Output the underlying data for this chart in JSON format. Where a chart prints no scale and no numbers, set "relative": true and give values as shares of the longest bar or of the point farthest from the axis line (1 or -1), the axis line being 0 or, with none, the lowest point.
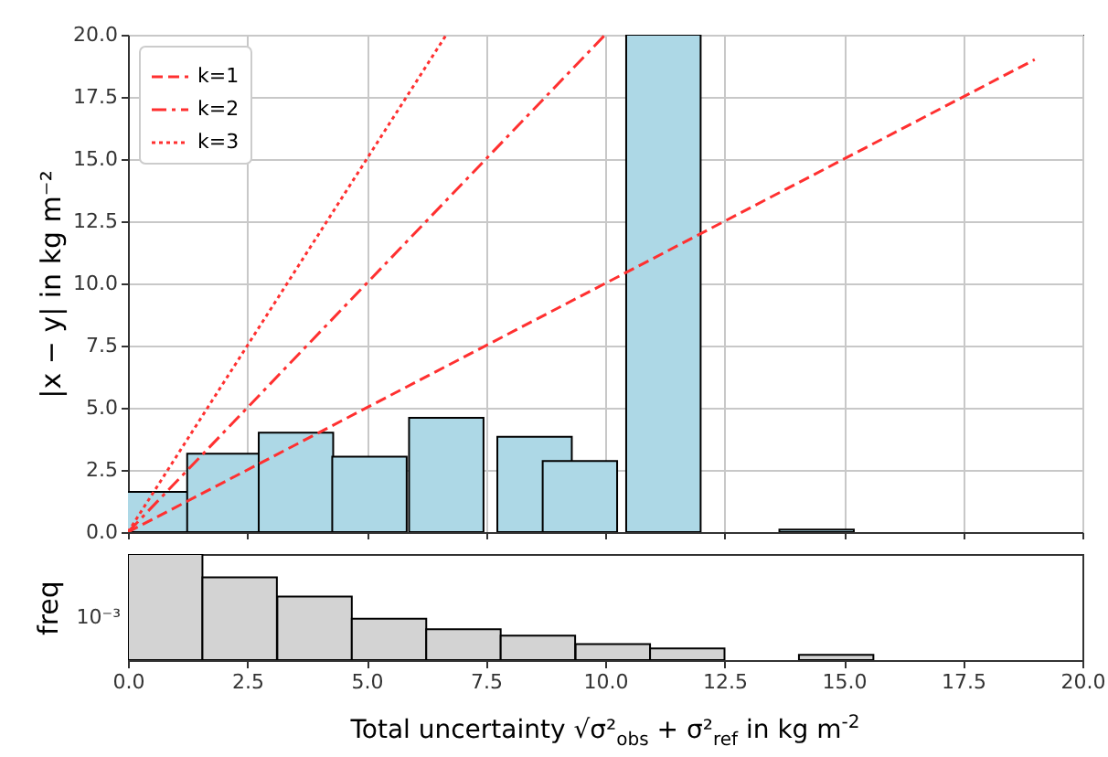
{
  "chart_data": [
    {
      "type": "bar",
      "x": [
        0.5,
        2.02,
        3.52,
        5.06,
        6.67,
        8.52,
        9.47,
        11.22,
        14.43
      ],
      "series": [
        {
          "type": "bar",
          "color": "#add8e6",
          "values": [
            1.62,
            3.15,
            4.0,
            3.03,
            4.6,
            3.83,
            2.86,
            20,
            0.1
          ]
        },
        {
          "type": "line",
          "name": "k=1",
          "color": "#ff3030",
          "line_style": "dashed",
          "x": [
            0,
            19
          ],
          "values": [
            0,
            19
          ]
        },
        {
          "type": "line",
          "name": "k=2",
          "color": "#ff3030",
          "line_style": "dashdot",
          "x": [
            0,
            10
          ],
          "values": [
            0,
            20
          ]
        },
        {
          "type": "line",
          "name": "k=3",
          "color": "#ff3030",
          "line_style": "dotted",
          "x": [
            0,
            6.67
          ],
          "values": [
            0,
            20
          ]
        }
      ],
      "ylabel": "|x − y| in kg m⁻²",
      "xlim": [
        0,
        20
      ],
      "xticks": [
        {
          "value": 0,
          "label": null
        },
        {
          "value": 2.5,
          "label": null
        },
        {
          "value": 5,
          "label": null
        },
        {
          "value": 7.5,
          "label": null
        },
        {
          "value": 10,
          "label": null
        },
        {
          "value": 12.5,
          "label": null
        },
        {
          "value": 15,
          "label": null
        },
        {
          "value": 17.5,
          "label": null
        },
        {
          "value": 20,
          "label": null
        }
      ],
      "ylim": [
        0,
        20
      ],
      "yticks": [
        {
          "value": 0,
          "label": "0.0"
        },
        {
          "value": 2.5,
          "label": "2.5"
        },
        {
          "value": 5,
          "label": "5.0"
        },
        {
          "value": 7.5,
          "label": "7.5"
        },
        {
          "value": 10,
          "label": "10.0"
        },
        {
          "value": 12.5,
          "label": "12.5"
        },
        {
          "value": 15,
          "label": "15.0"
        },
        {
          "value": 17.5,
          "label": "17.5"
        },
        {
          "value": 20,
          "label": "20.0"
        }
      ],
      "grid": true,
      "legend": "top left",
      "tick_labels": "y"
    },
    {
      "type": "bar",
      "x": [
        0.78,
        2.34,
        3.91,
        5.47,
        7.03,
        8.59,
        10.16,
        11.72,
        14.84
      ],
      "values": [
        1,
        0.78,
        0.6,
        0.39,
        0.29,
        0.23,
        0.15,
        0.11,
        0.05
      ],
      "color": "#d3d3d3",
      "relative": true,
      "xlabel": "Total uncertainty √σ²$_{obs}$ + σ²$_{ref}$ in kg m$^{-2}$",
      "ylabel": "freq",
      "xlim": [
        0,
        20
      ],
      "xticks": [
        {
          "value": 0,
          "label": "0.0"
        },
        {
          "value": 2.5,
          "label": "2.5"
        },
        {
          "value": 5,
          "label": "5.0"
        },
        {
          "value": 7.5,
          "label": "7.5"
        },
        {
          "value": 10,
          "label": "10.0"
        },
        {
          "value": 12.5,
          "label": "12.5"
        },
        {
          "value": 15,
          "label": "15.0"
        },
        {
          "value": 17.5,
          "label": "17.5"
        },
        {
          "value": 20,
          "label": "20.0"
        }
      ],
      "annotations": [
        "10⁻³"
      ],
      "tick_labels": "x"
    }
  ]
}
